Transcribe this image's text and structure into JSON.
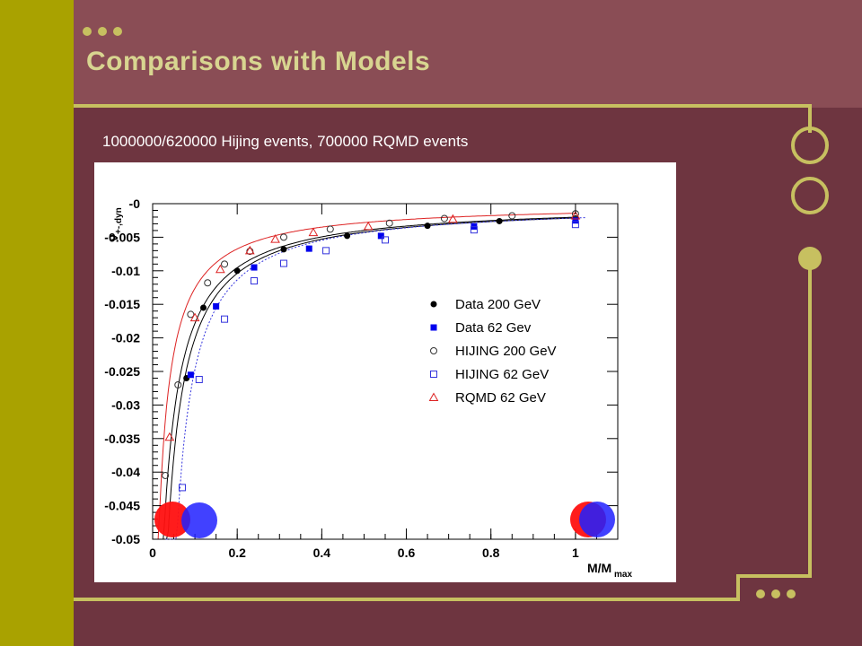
{
  "slide": {
    "title": "Comparisons with Models",
    "subtitle": "1000000/620000 Hijing events, 700000 RQMD events"
  },
  "colors": {
    "background": "#6e3540",
    "header": "#8a4d55",
    "left_bar": "#a9a200",
    "accent": "#c7c060",
    "title_text": "#d8d590"
  },
  "chart_data": {
    "type": "scatter",
    "xlabel_main": "M/M",
    "xlabel_sub": "max",
    "ylabel_main": "ν",
    "ylabel_sub": "+-,dyn",
    "xlim": [
      0,
      1.1
    ],
    "ylim": [
      -0.05,
      0
    ],
    "xticks": [
      0,
      0.2,
      0.4,
      0.6,
      0.8,
      1
    ],
    "xtick_labels": [
      "0",
      "0.2",
      "0.4",
      "0.6",
      "0.8",
      "1"
    ],
    "yticks": [
      0,
      -0.005,
      -0.01,
      -0.015,
      -0.02,
      -0.025,
      -0.03,
      -0.035,
      -0.04,
      -0.045,
      -0.05
    ],
    "ytick_labels": [
      "-0",
      "-0.005",
      "-0.01",
      "-0.015",
      "-0.02",
      "-0.025",
      "-0.03",
      "-0.035",
      "-0.04",
      "-0.045",
      "-0.05"
    ],
    "legend_position": "right",
    "series": [
      {
        "name": "Data 200 GeV",
        "marker": "filled-circle",
        "color": "#000000",
        "line_style": "solid",
        "x": [
          0.08,
          0.12,
          0.2,
          0.31,
          0.46,
          0.65,
          0.82,
          1.0
        ],
        "y": [
          -0.026,
          -0.0155,
          -0.01,
          -0.0068,
          -0.0048,
          -0.0033,
          -0.0026,
          -0.0022
        ]
      },
      {
        "name": "Data 62 Gev",
        "marker": "filled-square",
        "color": "#0000ee",
        "line_style": "solid",
        "x": [
          0.09,
          0.15,
          0.24,
          0.37,
          0.54,
          0.76,
          1.0
        ],
        "y": [
          -0.0255,
          -0.0153,
          -0.0095,
          -0.0067,
          -0.0048,
          -0.0034,
          -0.0025
        ]
      },
      {
        "name": "HIJING 200 GeV",
        "marker": "open-circle",
        "color": "#333333",
        "line_style": "none",
        "x": [
          0.03,
          0.06,
          0.09,
          0.13,
          0.17,
          0.23,
          0.31,
          0.42,
          0.56,
          0.69,
          0.85,
          1.0
        ],
        "y": [
          -0.0405,
          -0.027,
          -0.0165,
          -0.0118,
          -0.009,
          -0.0071,
          -0.005,
          -0.0038,
          -0.0029,
          -0.0022,
          -0.0018,
          -0.0015
        ]
      },
      {
        "name": "HIJING 62 GeV",
        "marker": "open-square",
        "color": "#3333dd",
        "line_style": "dotted",
        "x": [
          0.07,
          0.11,
          0.17,
          0.24,
          0.31,
          0.41,
          0.55,
          0.76,
          1.0
        ],
        "y": [
          -0.0423,
          -0.0262,
          -0.0172,
          -0.0115,
          -0.0089,
          -0.007,
          -0.0054,
          -0.0039,
          -0.0031
        ]
      },
      {
        "name": "RQMD 62 GeV",
        "marker": "open-triangle",
        "color": "#dd2222",
        "line_style": "solid",
        "x": [
          0.04,
          0.1,
          0.16,
          0.23,
          0.29,
          0.38,
          0.51,
          0.71,
          1.0
        ],
        "y": [
          -0.0348,
          -0.017,
          -0.0098,
          -0.007,
          -0.0053,
          -0.0043,
          -0.0034,
          -0.0023,
          -0.0018
        ]
      }
    ]
  }
}
